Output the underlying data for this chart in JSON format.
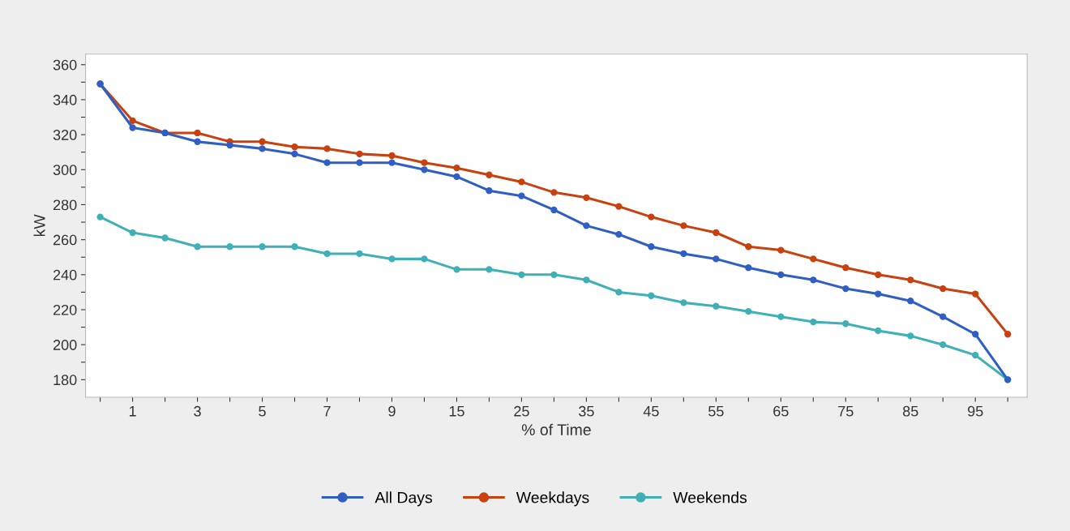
{
  "chart_data": {
    "type": "line",
    "xlabel": "% of Time",
    "ylabel": "kW",
    "categories": [
      null,
      "1",
      null,
      "3",
      null,
      "5",
      null,
      "7",
      null,
      "9",
      null,
      "15",
      null,
      "25",
      null,
      "35",
      null,
      "45",
      null,
      "55",
      null,
      "65",
      null,
      "75",
      null,
      "85",
      null,
      "95",
      null
    ],
    "series": [
      {
        "name": "All Days",
        "color": "#2f5fc4",
        "values": [
          349,
          324,
          321,
          316,
          314,
          312,
          309,
          304,
          304,
          304,
          300,
          296,
          288,
          285,
          277,
          268,
          263,
          256,
          252,
          249,
          244,
          240,
          237,
          232,
          229,
          225,
          216,
          206,
          180
        ]
      },
      {
        "name": "Weekdays",
        "color": "#c8410f",
        "values": [
          349,
          328,
          321,
          321,
          316,
          316,
          313,
          312,
          309,
          308,
          304,
          301,
          297,
          293,
          287,
          284,
          279,
          273,
          268,
          264,
          256,
          254,
          249,
          244,
          240,
          237,
          232,
          229,
          206
        ]
      },
      {
        "name": "Weekends",
        "color": "#3fb0b5",
        "values": [
          273,
          264,
          261,
          256,
          256,
          256,
          256,
          252,
          252,
          249,
          249,
          243,
          243,
          240,
          240,
          237,
          230,
          228,
          224,
          222,
          219,
          216,
          213,
          212,
          208,
          205,
          200,
          194,
          180
        ]
      }
    ],
    "ylim": [
      170,
      366
    ],
    "yticks": [
      180,
      {
        "value": 190,
        "label": null
      },
      200,
      {
        "value": 210,
        "label": null
      },
      220,
      {
        "value": 230,
        "label": null
      },
      240,
      {
        "value": 250,
        "label": null
      },
      260,
      {
        "value": 270,
        "label": null
      },
      280,
      {
        "value": 290,
        "label": null
      },
      300,
      {
        "value": 310,
        "label": null
      },
      320,
      {
        "value": 330,
        "label": null
      },
      340,
      {
        "value": 350,
        "label": null
      },
      360
    ],
    "grid": false,
    "legend": "bottom",
    "marker": "circle",
    "line_style": "solid"
  }
}
